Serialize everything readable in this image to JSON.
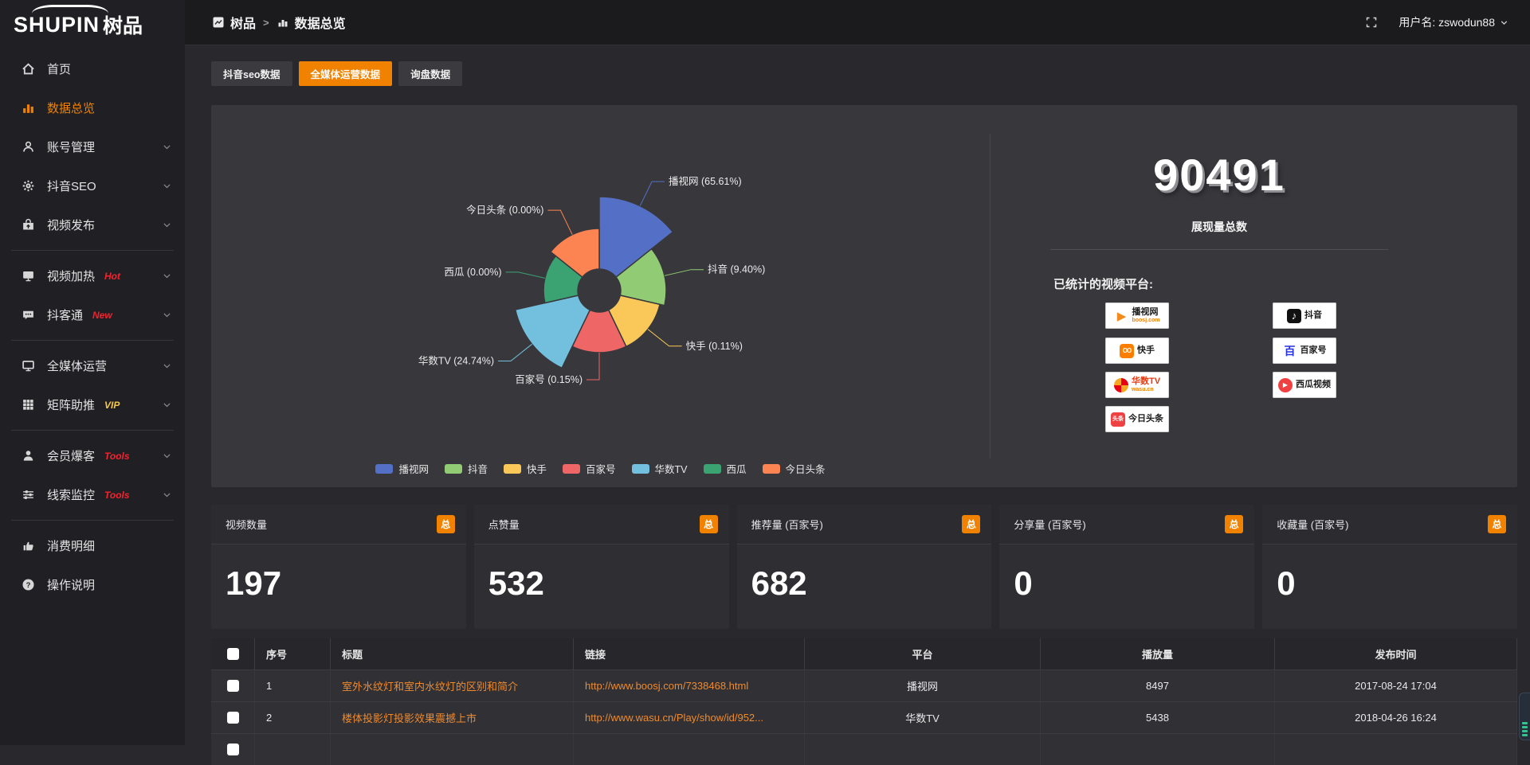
{
  "topbar": {
    "breadcrumb": {
      "app": "树品",
      "sep": ">",
      "page": "数据总览"
    },
    "username": "用户名: zswodun88"
  },
  "sidebar": {
    "brand_en": "SHUPIN",
    "brand_cn": "树品",
    "items": [
      {
        "label": "首页",
        "icon": "home"
      },
      {
        "label": "数据总览",
        "icon": "bar-chart",
        "active": true
      },
      {
        "label": "账号管理",
        "icon": "user",
        "chevron": true
      },
      {
        "label": "抖音SEO",
        "icon": "gear",
        "chevron": true
      },
      {
        "label": "视频发布",
        "icon": "video-upload",
        "chevron": true,
        "divider_after": true
      },
      {
        "label": "视频加热",
        "icon": "screen",
        "tag": "Hot",
        "tag_color": "#f5222d",
        "chevron": true
      },
      {
        "label": "抖客通",
        "icon": "chat",
        "tag": "New",
        "tag_color": "#f5222d",
        "chevron": true,
        "divider_after": true
      },
      {
        "label": "全媒体运营",
        "icon": "monitor",
        "chevron": true
      },
      {
        "label": "矩阵助推",
        "icon": "grid",
        "tag": "VIP",
        "tag_color": "#f6c64a",
        "chevron": true,
        "divider_after": true
      },
      {
        "label": "会员爆客",
        "icon": "person",
        "tag": "Tools",
        "tag_color": "#f5222d",
        "chevron": true
      },
      {
        "label": "线索监控",
        "icon": "sliders",
        "tag": "Tools",
        "tag_color": "#f5222d",
        "chevron": true,
        "divider_after": true
      },
      {
        "label": "消费明细",
        "icon": "thumb-card"
      },
      {
        "label": "操作说明",
        "icon": "help"
      }
    ]
  },
  "tabs": [
    {
      "label": "抖音seo数据",
      "active": false
    },
    {
      "label": "全媒体运营数据",
      "active": true
    },
    {
      "label": "询盘数据",
      "active": false
    }
  ],
  "chart_data": {
    "type": "pie",
    "subtype": "nightingale-rose",
    "legend_position": "bottom",
    "inner_radius": 27,
    "series": [
      {
        "name": "播视网",
        "pct": 65.61,
        "pct_label": "65.61%",
        "color": "#5470c6",
        "radius": 118
      },
      {
        "name": "抖音",
        "pct": 9.4,
        "pct_label": "9.40%",
        "color": "#91cc75",
        "radius": 84
      },
      {
        "name": "快手",
        "pct": 0.11,
        "pct_label": "0.11%",
        "color": "#fac858",
        "radius": 78
      },
      {
        "name": "百家号",
        "pct": 0.15,
        "pct_label": "0.15%",
        "color": "#ee6666",
        "radius": 78
      },
      {
        "name": "华数TV",
        "pct": 24.74,
        "pct_label": "24.74%",
        "color": "#73c0de",
        "radius": 108
      },
      {
        "name": "西瓜",
        "pct": 0.0,
        "pct_label": "0.00%",
        "color": "#3ba272",
        "radius": 70
      },
      {
        "name": "今日头条",
        "pct": 0.0,
        "pct_label": "0.00%",
        "color": "#fc8452",
        "radius": 78
      }
    ]
  },
  "overview": {
    "value": "90491",
    "label": "展现量总数",
    "platforms_label": "已统计的视频平台:",
    "platform_columns": [
      [
        {
          "name": "播视网",
          "sub": "boosj.com",
          "icon": "boosj"
        },
        {
          "name": "快手",
          "icon": "kuaishou"
        },
        {
          "name": "华数TV",
          "sub": "wasu.cn",
          "icon": "wasu"
        },
        {
          "name": "今日头条",
          "icon": "toutiao"
        }
      ],
      [
        {
          "name": "抖音",
          "icon": "douyin"
        },
        {
          "name": "百家号",
          "icon": "baijiahao"
        },
        {
          "name": "西瓜视频",
          "icon": "xigua"
        }
      ]
    ]
  },
  "stat_cards": [
    {
      "label": "视频数量",
      "badge": "总",
      "value": "197"
    },
    {
      "label": "点赞量",
      "badge": "总",
      "value": "532"
    },
    {
      "label": "推荐量 (百家号)",
      "badge": "总",
      "value": "682"
    },
    {
      "label": "分享量 (百家号)",
      "badge": "总",
      "value": "0"
    },
    {
      "label": "收藏量 (百家号)",
      "badge": "总",
      "value": "0"
    }
  ],
  "table": {
    "headers": [
      "序号",
      "标题",
      "链接",
      "平台",
      "播放量",
      "发布时间"
    ],
    "rows": [
      {
        "no": "1",
        "title": "室外水纹灯和室内水纹灯的区别和简介",
        "link": "http://www.boosj.com/7338468.html",
        "platform": "播视网",
        "plays": "8497",
        "time": "2017-08-24 17:04"
      },
      {
        "no": "2",
        "title": "楼体投影灯投影效果震撼上市",
        "link": "http://www.wasu.cn/Play/show/id/952...",
        "platform": "华数TV",
        "plays": "5438",
        "time": "2018-04-26 16:24"
      }
    ],
    "partial_third_row": true
  },
  "colors": {
    "accent": "#f08200",
    "link": "#ef8a2e",
    "tag_red": "#f5222d",
    "tag_gold": "#f6c64a"
  }
}
